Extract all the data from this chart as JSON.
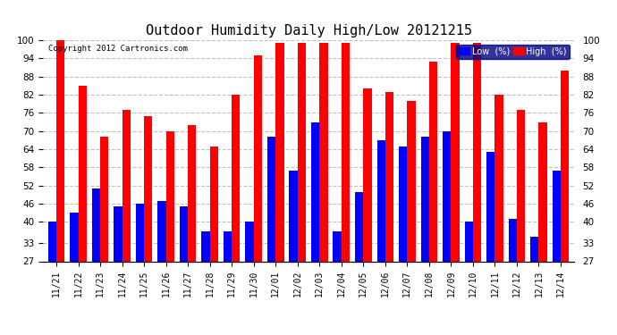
{
  "title": "Outdoor Humidity Daily High/Low 20121215",
  "copyright": "Copyright 2012 Cartronics.com",
  "dates": [
    "11/21",
    "11/22",
    "11/23",
    "11/24",
    "11/25",
    "11/26",
    "11/27",
    "11/28",
    "11/29",
    "11/30",
    "12/01",
    "12/02",
    "12/03",
    "12/04",
    "12/05",
    "12/06",
    "12/07",
    "12/08",
    "12/09",
    "12/10",
    "12/11",
    "12/12",
    "12/13",
    "12/14"
  ],
  "low": [
    40,
    43,
    51,
    45,
    46,
    47,
    45,
    37,
    37,
    40,
    68,
    57,
    73,
    37,
    50,
    67,
    65,
    68,
    70,
    40,
    63,
    41,
    35,
    57
  ],
  "high": [
    100,
    85,
    68,
    77,
    75,
    70,
    72,
    65,
    82,
    95,
    99,
    99,
    99,
    99,
    84,
    83,
    80,
    93,
    99,
    99,
    82,
    77,
    73,
    90
  ],
  "low_color": "#0000ff",
  "high_color": "#ff0000",
  "bg_color": "#ffffff",
  "plot_bg_color": "#ffffff",
  "grid_color": "#c0c0c0",
  "ylim_min": 27,
  "ylim_max": 100,
  "yticks": [
    27,
    33,
    40,
    46,
    52,
    58,
    64,
    70,
    76,
    82,
    88,
    94,
    100
  ],
  "legend_low_label": "Low  (%)",
  "legend_high_label": "High  (%)",
  "title_fontsize": 11,
  "bar_width": 0.38
}
